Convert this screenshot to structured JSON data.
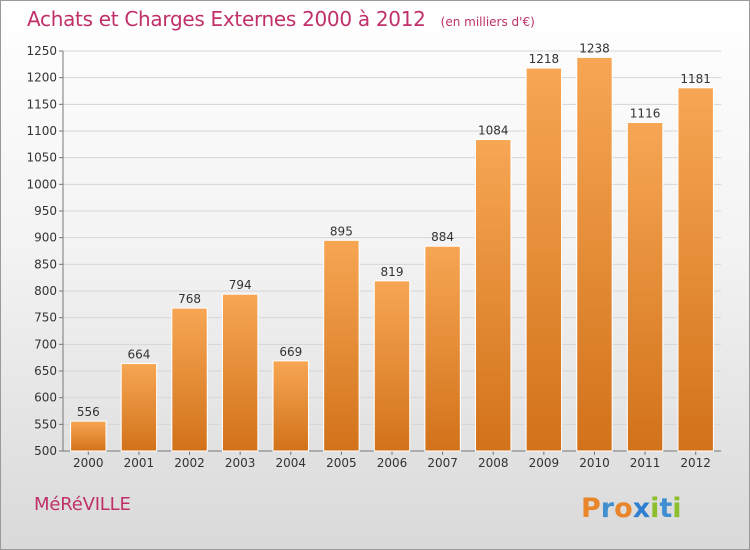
{
  "title": "Achats et Charges Externes 2000 à 2012",
  "subtitle": "(en milliers d'€)",
  "commune": "MéRéVILLE",
  "logo_text": "Proxiti",
  "colors": {
    "title": "#c0306a",
    "bar_light": "#f7a654",
    "bar_dark": "#d2721a",
    "grid": "#d6d6d6"
  },
  "chart_data": {
    "type": "bar",
    "title": "Achats et Charges Externes 2000 à 2012",
    "subtitle": "(en milliers d'€)",
    "categories": [
      "2000",
      "2001",
      "2002",
      "2003",
      "2004",
      "2005",
      "2006",
      "2007",
      "2008",
      "2009",
      "2010",
      "2011",
      "2012"
    ],
    "values": [
      556,
      664,
      768,
      794,
      669,
      895,
      819,
      884,
      1084,
      1218,
      1238,
      1116,
      1181
    ],
    "ylim": [
      500,
      1250
    ],
    "yticks": [
      500,
      550,
      600,
      650,
      700,
      750,
      800,
      850,
      900,
      950,
      1000,
      1050,
      1100,
      1150,
      1200,
      1250
    ],
    "xlabel": "",
    "ylabel": "",
    "grid": true,
    "legend": "none"
  }
}
